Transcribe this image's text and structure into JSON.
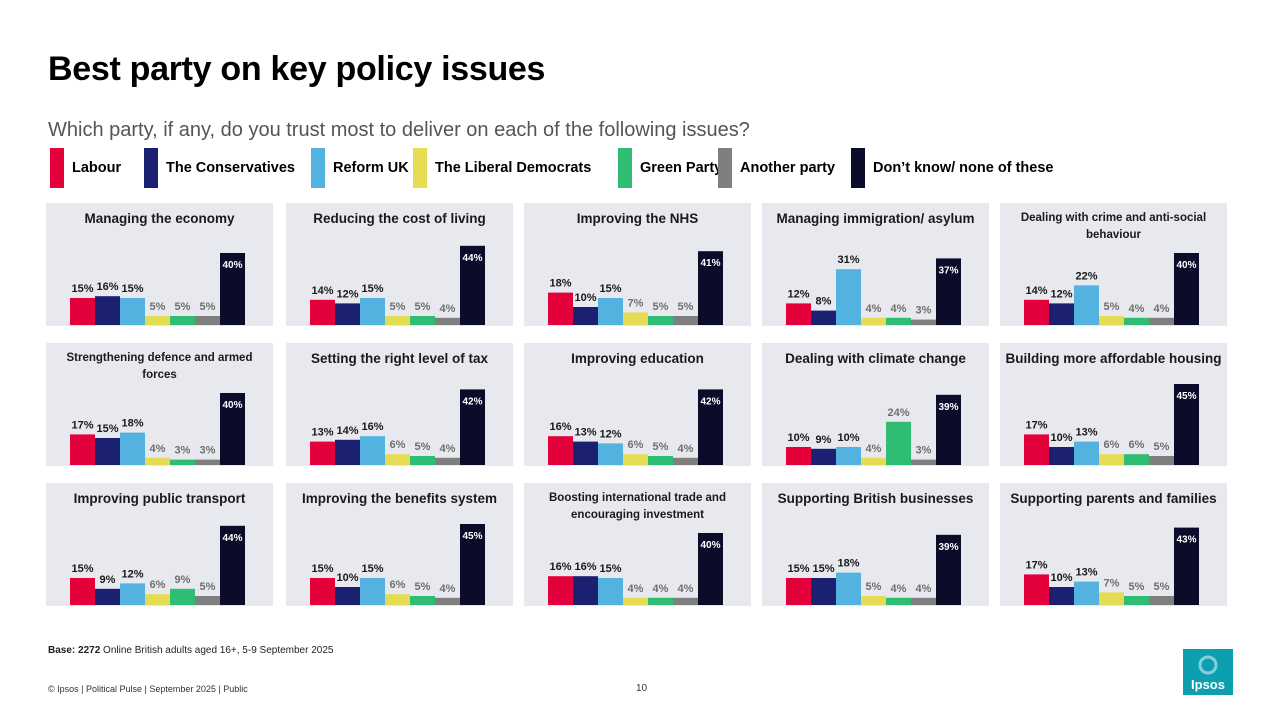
{
  "title": "Best party on key policy issues",
  "subtitle": "Which party, if any, do you trust most to deliver on each of the following issues?",
  "legend": [
    {
      "label": "Labour",
      "color": "#e4003b"
    },
    {
      "label": "The Conservatives",
      "color": "#1b2071"
    },
    {
      "label": "Reform UK",
      "color": "#54b2e0"
    },
    {
      "label": "The Liberal Democrats",
      "color": "#e6dc54"
    },
    {
      "label": "Green Party",
      "color": "#2ebd72"
    },
    {
      "label": "Another party",
      "color": "#7f7f7f"
    },
    {
      "label": "Don’t know/ none of these",
      "color": "#0a0c2a"
    }
  ],
  "chart_data": [
    {
      "type": "bar",
      "title": "Managing the economy",
      "values": [
        15,
        16,
        15,
        5,
        5,
        5,
        40
      ]
    },
    {
      "type": "bar",
      "title": "Reducing the cost of living",
      "values": [
        14,
        12,
        15,
        5,
        5,
        4,
        44
      ]
    },
    {
      "type": "bar",
      "title": "Improving the NHS",
      "values": [
        18,
        10,
        15,
        7,
        5,
        5,
        41
      ]
    },
    {
      "type": "bar",
      "title": "Managing immigration/ asylum",
      "values": [
        12,
        8,
        31,
        4,
        4,
        3,
        37
      ]
    },
    {
      "type": "bar",
      "title": "Dealing with crime and anti-social behaviour",
      "values": [
        14,
        12,
        22,
        5,
        4,
        4,
        40
      ]
    },
    {
      "type": "bar",
      "title": "Strengthening defence and armed forces",
      "values": [
        17,
        15,
        18,
        4,
        3,
        3,
        40
      ]
    },
    {
      "type": "bar",
      "title": "Setting the right level of tax",
      "values": [
        13,
        14,
        16,
        6,
        5,
        4,
        42
      ]
    },
    {
      "type": "bar",
      "title": "Improving education",
      "values": [
        16,
        13,
        12,
        6,
        5,
        4,
        42
      ]
    },
    {
      "type": "bar",
      "title": "Dealing with climate change",
      "values": [
        10,
        9,
        10,
        4,
        24,
        3,
        39
      ]
    },
    {
      "type": "bar",
      "title": "Building more affordable housing",
      "values": [
        17,
        10,
        13,
        6,
        6,
        5,
        45
      ]
    },
    {
      "type": "bar",
      "title": "Improving public transport",
      "values": [
        15,
        9,
        12,
        6,
        9,
        5,
        44
      ]
    },
    {
      "type": "bar",
      "title": "Improving the benefits system",
      "values": [
        15,
        10,
        15,
        6,
        5,
        4,
        45
      ]
    },
    {
      "type": "bar",
      "title": "Boosting international trade and encouraging investment",
      "values": [
        16,
        16,
        15,
        4,
        4,
        4,
        40
      ]
    },
    {
      "type": "bar",
      "title": "Supporting British businesses",
      "values": [
        15,
        15,
        18,
        5,
        4,
        4,
        39
      ]
    },
    {
      "type": "bar",
      "title": "Supporting parents and families",
      "values": [
        17,
        10,
        13,
        7,
        5,
        5,
        43
      ]
    }
  ],
  "footer": {
    "base_bold": "Base: 2272",
    "base_text": " Online British adults aged 16+,  5-9 September  2025",
    "left": "© Ipsos | Political Pulse | September 2025 | Public",
    "page": "10",
    "logo": "Ipsos"
  }
}
